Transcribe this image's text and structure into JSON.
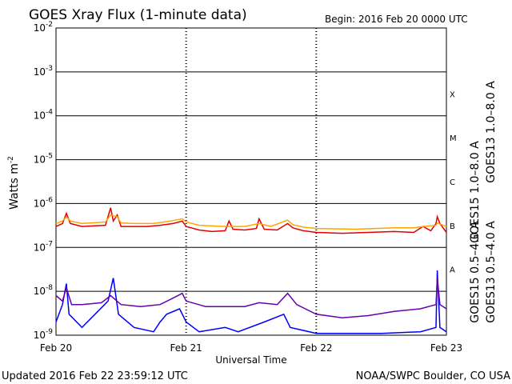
{
  "chart_data": {
    "type": "line",
    "title": "GOES Xray Flux (1-minute data)",
    "begin_label": "Begin:  2016 Feb 20 0000 UTC",
    "ylabel": "Watts m",
    "ylabel_sup": "-2",
    "xlabel": "Universal Time",
    "y_scale": "log",
    "ylim": [
      1e-09,
      0.01
    ],
    "y_ticks": [
      {
        "value": 0.01,
        "base": "10",
        "exp": "-2"
      },
      {
        "value": 0.001,
        "base": "10",
        "exp": "-3"
      },
      {
        "value": 0.0001,
        "base": "10",
        "exp": "-4"
      },
      {
        "value": 1e-05,
        "base": "10",
        "exp": "-5"
      },
      {
        "value": 1e-06,
        "base": "10",
        "exp": "-6"
      },
      {
        "value": 1e-07,
        "base": "10",
        "exp": "-7"
      },
      {
        "value": 1e-08,
        "base": "10",
        "exp": "-8"
      },
      {
        "value": 1e-09,
        "base": "10",
        "exp": "-9"
      }
    ],
    "x_ticks": [
      "Feb 20",
      "Feb 21",
      "Feb 22",
      "Feb 23"
    ],
    "xlim_days": [
      0,
      3
    ],
    "flare_classes": [
      {
        "label": "X",
        "value": 0.000316
      },
      {
        "label": "M",
        "value": 3.16e-05
      },
      {
        "label": "C",
        "value": 3.16e-06
      },
      {
        "label": "B",
        "value": 3.16e-07
      },
      {
        "label": "A",
        "value": 3.16e-08
      }
    ],
    "grid": true,
    "legend_placement": "right",
    "series": [
      {
        "name": "GOES15 1.0–8.0 A",
        "color": "#e00000",
        "points": [
          [
            0.0,
            3e-07
          ],
          [
            0.05,
            3.5e-07
          ],
          [
            0.08,
            6e-07
          ],
          [
            0.11,
            3.5e-07
          ],
          [
            0.2,
            3e-07
          ],
          [
            0.38,
            3.2e-07
          ],
          [
            0.42,
            8e-07
          ],
          [
            0.44,
            4e-07
          ],
          [
            0.47,
            5.5e-07
          ],
          [
            0.5,
            3e-07
          ],
          [
            0.6,
            3e-07
          ],
          [
            0.7,
            3e-07
          ],
          [
            0.8,
            3.2e-07
          ],
          [
            0.9,
            3.5e-07
          ],
          [
            0.97,
            4e-07
          ],
          [
            1.0,
            3e-07
          ],
          [
            1.1,
            2.5e-07
          ],
          [
            1.2,
            2.3e-07
          ],
          [
            1.3,
            2.4e-07
          ],
          [
            1.33,
            4e-07
          ],
          [
            1.36,
            2.6e-07
          ],
          [
            1.45,
            2.5e-07
          ],
          [
            1.54,
            2.7e-07
          ],
          [
            1.56,
            4.5e-07
          ],
          [
            1.6,
            2.6e-07
          ],
          [
            1.7,
            2.5e-07
          ],
          [
            1.78,
            3.5e-07
          ],
          [
            1.82,
            2.8e-07
          ],
          [
            1.9,
            2.4e-07
          ],
          [
            2.0,
            2.2e-07
          ],
          [
            2.2,
            2.1e-07
          ],
          [
            2.4,
            2.2e-07
          ],
          [
            2.6,
            2.3e-07
          ],
          [
            2.75,
            2.2e-07
          ],
          [
            2.82,
            3e-07
          ],
          [
            2.88,
            2.4e-07
          ],
          [
            2.92,
            3.5e-07
          ],
          [
            2.93,
            5e-07
          ],
          [
            2.95,
            3.5e-07
          ],
          [
            3.0,
            2.2e-07
          ]
        ]
      },
      {
        "name": "GOES13 1.0–8.0 A",
        "color": "#ffa500",
        "points": [
          [
            0.0,
            3.5e-07
          ],
          [
            0.05,
            4e-07
          ],
          [
            0.08,
            5e-07
          ],
          [
            0.11,
            4e-07
          ],
          [
            0.2,
            3.5e-07
          ],
          [
            0.38,
            3.8e-07
          ],
          [
            0.42,
            5.5e-07
          ],
          [
            0.47,
            5e-07
          ],
          [
            0.5,
            3.6e-07
          ],
          [
            0.6,
            3.5e-07
          ],
          [
            0.75,
            3.5e-07
          ],
          [
            0.88,
            4e-07
          ],
          [
            0.97,
            4.5e-07
          ],
          [
            1.0,
            3.8e-07
          ],
          [
            1.1,
            3.2e-07
          ],
          [
            1.3,
            3e-07
          ],
          [
            1.45,
            3e-07
          ],
          [
            1.56,
            3.5e-07
          ],
          [
            1.65,
            3e-07
          ],
          [
            1.78,
            4.2e-07
          ],
          [
            1.82,
            3.3e-07
          ],
          [
            1.9,
            2.9e-07
          ],
          [
            2.0,
            2.7e-07
          ],
          [
            2.3,
            2.6e-07
          ],
          [
            2.6,
            2.8e-07
          ],
          [
            2.75,
            2.8e-07
          ],
          [
            2.82,
            3e-07
          ],
          [
            2.92,
            3.2e-07
          ],
          [
            2.93,
            3.6e-07
          ],
          [
            3.0,
            3e-07
          ]
        ]
      },
      {
        "name": "GOES15 0.5–4.0 A",
        "color": "#0000ff",
        "points": [
          [
            0.0,
            2e-09
          ],
          [
            0.05,
            5e-09
          ],
          [
            0.08,
            1.5e-08
          ],
          [
            0.1,
            3e-09
          ],
          [
            0.2,
            1.5e-09
          ],
          [
            0.3,
            3e-09
          ],
          [
            0.4,
            6e-09
          ],
          [
            0.44,
            2e-08
          ],
          [
            0.48,
            3e-09
          ],
          [
            0.6,
            1.5e-09
          ],
          [
            0.75,
            1.2e-09
          ],
          [
            0.8,
            2e-09
          ],
          [
            0.85,
            3e-09
          ],
          [
            0.95,
            4e-09
          ],
          [
            1.0,
            2e-09
          ],
          [
            1.1,
            1.2e-09
          ],
          [
            1.3,
            1.5e-09
          ],
          [
            1.4,
            1.2e-09
          ],
          [
            1.6,
            2e-09
          ],
          [
            1.75,
            3e-09
          ],
          [
            1.8,
            1.5e-09
          ],
          [
            2.0,
            1.1e-09
          ],
          [
            2.5,
            1.1e-09
          ],
          [
            2.8,
            1.2e-09
          ],
          [
            2.92,
            1.5e-09
          ],
          [
            2.93,
            3e-08
          ],
          [
            2.95,
            1.5e-09
          ],
          [
            3.0,
            1.2e-09
          ]
        ]
      },
      {
        "name": "GOES13 0.5–4.0 A",
        "color": "#6600aa",
        "points": [
          [
            0.0,
            8e-09
          ],
          [
            0.05,
            6e-09
          ],
          [
            0.08,
            1.2e-08
          ],
          [
            0.12,
            5e-09
          ],
          [
            0.2,
            5e-09
          ],
          [
            0.35,
            5.5e-09
          ],
          [
            0.42,
            8e-09
          ],
          [
            0.5,
            5e-09
          ],
          [
            0.65,
            4.5e-09
          ],
          [
            0.8,
            5e-09
          ],
          [
            0.9,
            7e-09
          ],
          [
            0.97,
            9e-09
          ],
          [
            1.0,
            6e-09
          ],
          [
            1.15,
            4.5e-09
          ],
          [
            1.3,
            4.5e-09
          ],
          [
            1.45,
            4.5e-09
          ],
          [
            1.56,
            5.5e-09
          ],
          [
            1.7,
            5e-09
          ],
          [
            1.78,
            9e-09
          ],
          [
            1.85,
            5e-09
          ],
          [
            2.0,
            3e-09
          ],
          [
            2.2,
            2.5e-09
          ],
          [
            2.4,
            2.8e-09
          ],
          [
            2.6,
            3.5e-09
          ],
          [
            2.8,
            4e-09
          ],
          [
            2.92,
            5e-09
          ],
          [
            2.93,
            2e-08
          ],
          [
            2.95,
            5e-09
          ],
          [
            3.0,
            4e-09
          ]
        ]
      }
    ]
  },
  "footer": {
    "updated": "Updated 2016 Feb 22 23:59:12 UTC",
    "credit": "NOAA/SWPC Boulder, CO USA"
  }
}
